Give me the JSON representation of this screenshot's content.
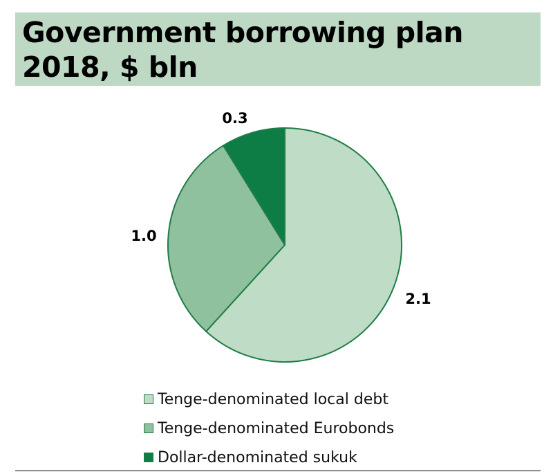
{
  "chart_data": {
    "type": "pie",
    "title": "Government borrowing plan 2018, $ bln",
    "series": [
      {
        "name": "Tenge-denominated local debt",
        "value": 2.1,
        "label": "2.1",
        "color": "#bfdcc6"
      },
      {
        "name": "Tenge-denominated Eurobonds",
        "value": 1.0,
        "label": "1.0",
        "color": "#8fc19e"
      },
      {
        "name": "Dollar-denominated sukuk",
        "value": 0.3,
        "label": "0.3",
        "color": "#0e7d45"
      }
    ],
    "legend": "bottom",
    "start": "12 o'clock",
    "direction": "clockwise",
    "outline_color": "#1f7d46"
  },
  "colors": {
    "title_band": "#bdd9c4"
  }
}
